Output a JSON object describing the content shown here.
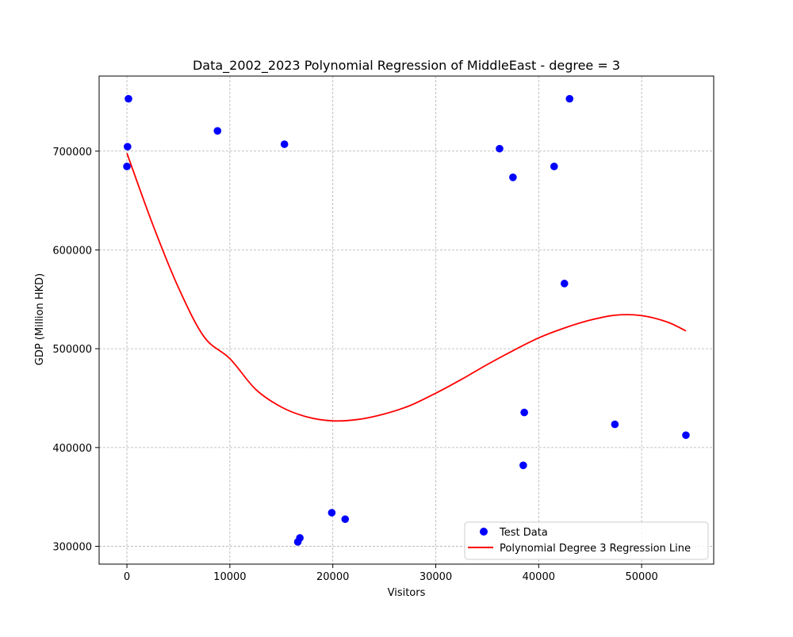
{
  "chart_data": {
    "type": "scatter",
    "title": "Data_2002_2023 Polynomial Regression of MiddleEast - degree = 3",
    "xlabel": "Visitors",
    "ylabel": "GDP (Million HKD)",
    "xlim": [
      -2700,
      57000
    ],
    "ylim": [
      282000,
      776000
    ],
    "xticks": [
      0,
      10000,
      20000,
      30000,
      40000,
      50000
    ],
    "yticks": [
      300000,
      400000,
      500000,
      600000,
      700000
    ],
    "grid": true,
    "legend_position": "lower-right",
    "series": [
      {
        "name": "Test Data",
        "kind": "scatter",
        "color": "#0000ff",
        "points": [
          [
            150,
            753000
          ],
          [
            60,
            704500
          ],
          [
            0,
            684500
          ],
          [
            8800,
            720500
          ],
          [
            15300,
            707000
          ],
          [
            16600,
            304500
          ],
          [
            16800,
            308500
          ],
          [
            19900,
            334000
          ],
          [
            21200,
            327500
          ],
          [
            36200,
            702500
          ],
          [
            37500,
            673500
          ],
          [
            41500,
            684500
          ],
          [
            43000,
            753000
          ],
          [
            42500,
            566000
          ],
          [
            38600,
            435500
          ],
          [
            38500,
            382000
          ],
          [
            47400,
            423500
          ],
          [
            54300,
            412500
          ]
        ]
      },
      {
        "name": "Polynomial Degree 3 Regression Line",
        "kind": "line",
        "color": "#ff0000",
        "points": [
          [
            0,
            698000
          ],
          [
            2500,
            626000
          ],
          [
            5000,
            562000
          ],
          [
            7500,
            512000
          ],
          [
            10000,
            490000
          ],
          [
            12500,
            459000
          ],
          [
            15000,
            441000
          ],
          [
            17500,
            431000
          ],
          [
            20000,
            427000
          ],
          [
            22500,
            428500
          ],
          [
            25000,
            434000
          ],
          [
            27500,
            442500
          ],
          [
            30000,
            455000
          ],
          [
            32500,
            469000
          ],
          [
            35000,
            484000
          ],
          [
            37500,
            498000
          ],
          [
            40000,
            511000
          ],
          [
            42500,
            521000
          ],
          [
            45000,
            529000
          ],
          [
            47500,
            534000
          ],
          [
            50000,
            533500
          ],
          [
            52500,
            527000
          ],
          [
            54300,
            518000
          ]
        ]
      }
    ]
  }
}
